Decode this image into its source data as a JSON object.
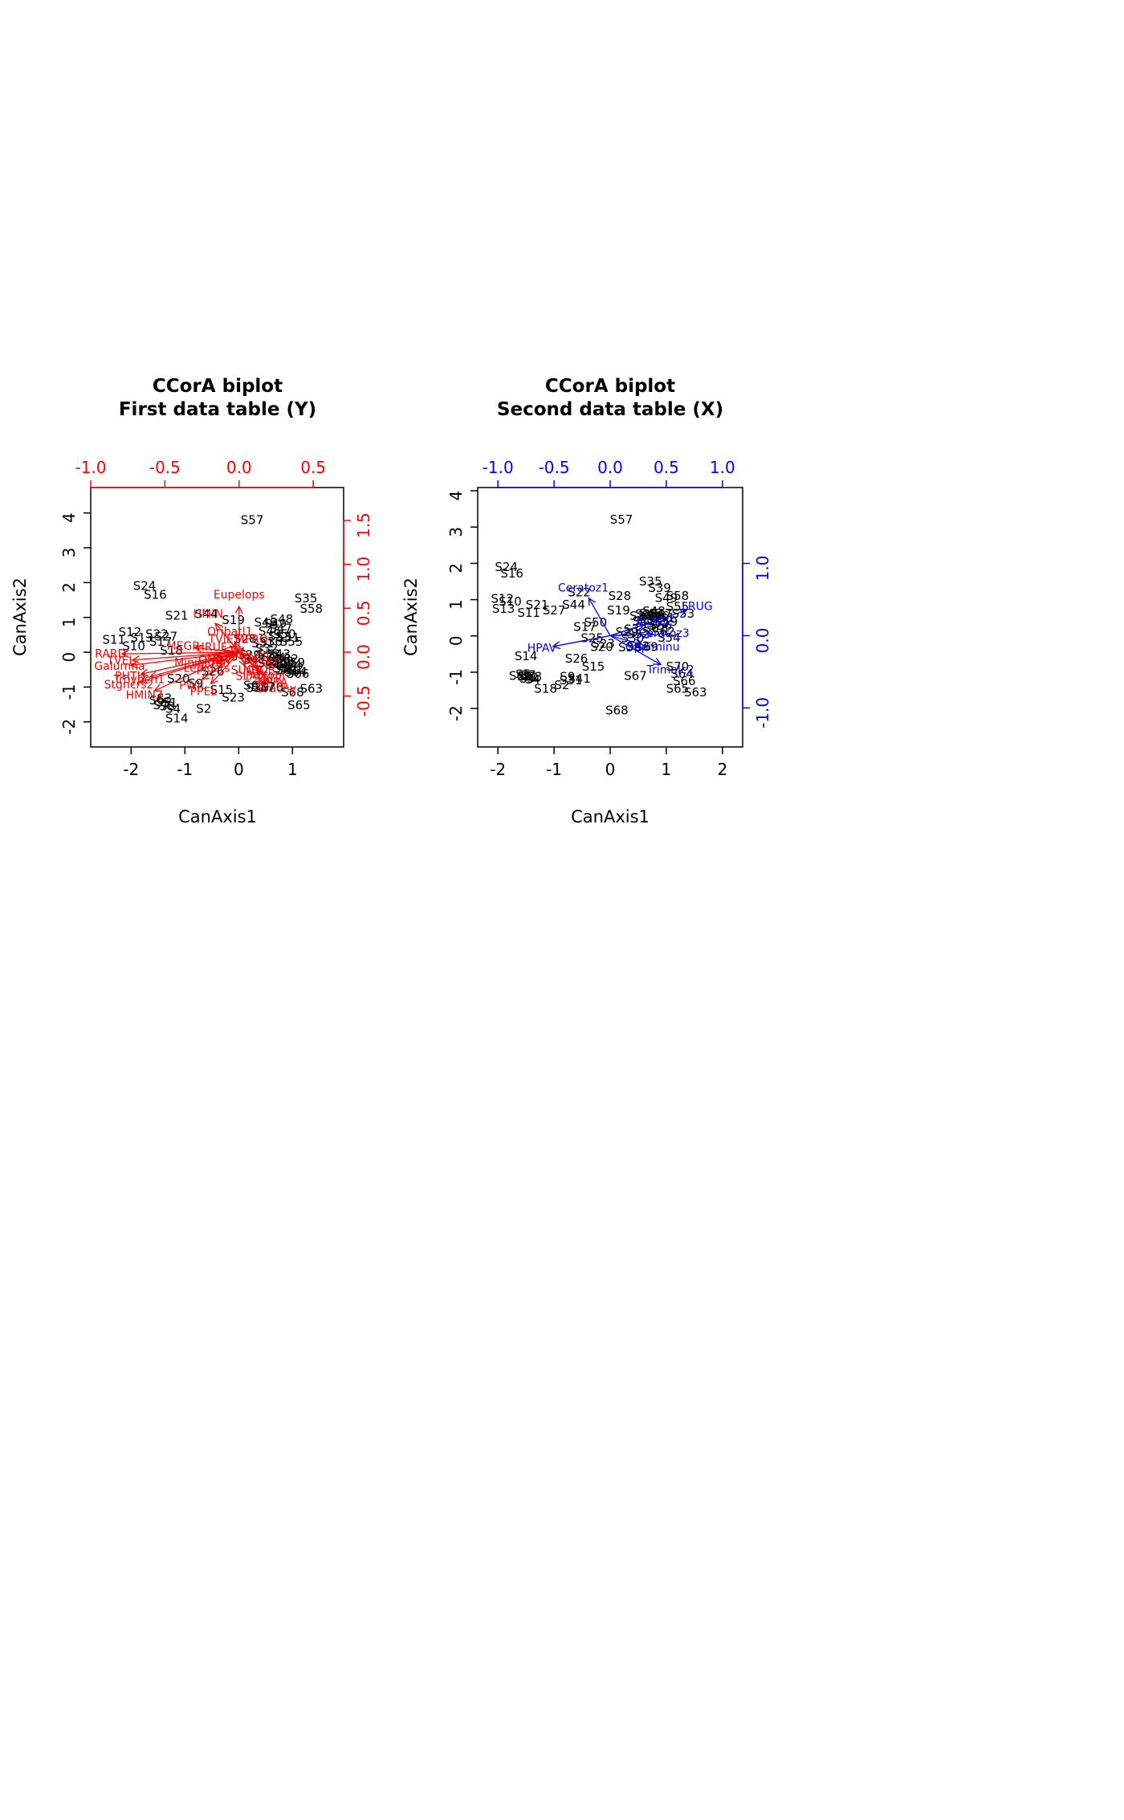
{
  "figure": {
    "background": "#ffffff",
    "site_label_color": "#000000",
    "box_color": "#000000"
  },
  "chart_data": [
    {
      "type": "scatter",
      "subtype": "CCorA-biplot",
      "title": [
        "CCorA biplot",
        "First data table (Y)"
      ],
      "xlabel": "CanAxis1",
      "ylabel": "CanAxis2",
      "site_color": "#000000",
      "arrow_color": "#ff0000",
      "axis_bottom": {
        "tick_labels": [
          "-2",
          "-1",
          "0",
          "1"
        ],
        "tick_values": [
          -2,
          -1,
          0,
          1
        ],
        "range": [
          -2.75,
          1.95
        ]
      },
      "axis_left": {
        "tick_labels": [
          "-2",
          "-1",
          "0",
          "1",
          "2",
          "3",
          "4"
        ],
        "tick_values": [
          -2,
          -1,
          0,
          1,
          2,
          3,
          4
        ],
        "range": [
          -2.72,
          4.73
        ]
      },
      "axis_top": {
        "tick_labels": [
          "-1.0",
          "-0.5",
          "0.0",
          "0.5"
        ],
        "tick_values": [
          -1.0,
          -0.5,
          0.0,
          0.5
        ],
        "range": [
          -1.0,
          0.705
        ]
      },
      "axis_right": {
        "tick_labels": [
          "-0.5",
          "0.0",
          "0.5",
          "1.0",
          "1.5"
        ],
        "tick_values": [
          -0.5,
          0.0,
          0.5,
          1.0,
          1.5
        ],
        "range": [
          -1.08,
          1.875
        ]
      },
      "sites": [
        [
          "S1",
          -1.28,
          -1.45
        ],
        [
          "S2",
          -0.65,
          -1.62
        ],
        [
          "S3",
          -1.38,
          -1.32
        ],
        [
          "S4",
          -1.22,
          -1.62
        ],
        [
          "S5",
          -1.4,
          -1.44
        ],
        [
          "S6",
          -1.52,
          -1.38
        ],
        [
          "S7",
          -1.45,
          -1.52
        ],
        [
          "S8",
          -1.33,
          -1.55
        ],
        [
          "S9",
          -0.8,
          -0.9
        ],
        [
          "S10",
          -1.95,
          0.18
        ],
        [
          "S11",
          -2.32,
          0.36
        ],
        [
          "S12",
          -2.02,
          0.58
        ],
        [
          "S13",
          -1.8,
          0.42
        ],
        [
          "S14",
          -1.15,
          -1.9
        ],
        [
          "S15",
          -0.32,
          -1.08
        ],
        [
          "S16",
          -1.55,
          1.65
        ],
        [
          "S17",
          -1.45,
          0.3
        ],
        [
          "S18",
          -1.25,
          0.05
        ],
        [
          "S19",
          -0.1,
          0.92
        ],
        [
          "S20",
          -1.12,
          -0.76
        ],
        [
          "S21",
          -1.15,
          1.05
        ],
        [
          "S22",
          -1.52,
          0.52
        ],
        [
          "S23",
          -0.1,
          -1.3
        ],
        [
          "S24",
          -1.75,
          1.9
        ],
        [
          "S25",
          -0.22,
          -0.12
        ],
        [
          "S26",
          -0.48,
          -0.55
        ],
        [
          "S27",
          -1.35,
          0.45
        ],
        [
          "S28",
          0.12,
          0.38
        ],
        [
          "S29",
          0.2,
          -0.08
        ],
        [
          "S30",
          0.35,
          -1.02
        ],
        [
          "S31",
          0.45,
          0.25
        ],
        [
          "S32",
          0.52,
          0.1
        ],
        [
          "S33",
          0.56,
          -0.06
        ],
        [
          "S34",
          0.66,
          -0.15
        ],
        [
          "S35",
          1.25,
          1.55
        ],
        [
          "S36",
          0.6,
          0.3
        ],
        [
          "S37",
          0.45,
          -1.0
        ],
        [
          "S38",
          0.76,
          -0.2
        ],
        [
          "S39",
          0.82,
          -0.26
        ],
        [
          "S40",
          0.7,
          -0.36
        ],
        [
          "S41",
          0.3,
          -0.22
        ],
        [
          "S42",
          0.56,
          -0.32
        ],
        [
          "S43",
          0.75,
          -0.06
        ],
        [
          "S44",
          -0.6,
          1.1
        ],
        [
          "S45",
          0.58,
          0.6
        ],
        [
          "S46",
          0.5,
          0.85
        ],
        [
          "S47",
          0.78,
          0.68
        ],
        [
          "S48",
          0.8,
          0.95
        ],
        [
          "S49",
          0.68,
          0.82
        ],
        [
          "S50",
          0.85,
          0.52
        ],
        [
          "S51",
          0.92,
          0.42
        ],
        [
          "S52",
          0.9,
          -0.2
        ],
        [
          "S53",
          0.76,
          0.45
        ],
        [
          "S54",
          0.96,
          -0.36
        ],
        [
          "S55",
          0.98,
          0.3
        ],
        [
          "S56",
          0.86,
          -0.46
        ],
        [
          "S57",
          0.25,
          3.8
        ],
        [
          "S58",
          1.35,
          1.25
        ],
        [
          "S59",
          1.02,
          -0.3
        ],
        [
          "S60",
          0.95,
          -0.52
        ],
        [
          "S61",
          0.9,
          -0.5
        ],
        [
          "S62",
          1.0,
          -0.46
        ],
        [
          "S63",
          1.35,
          -1.05
        ],
        [
          "S64",
          1.06,
          -0.56
        ],
        [
          "S65",
          1.12,
          -1.52
        ],
        [
          "S66",
          1.1,
          -0.62
        ],
        [
          "S67",
          0.3,
          -0.95
        ],
        [
          "S68",
          1.0,
          -1.15
        ],
        [
          "S69",
          0.76,
          -0.34
        ],
        [
          "S70",
          0.62,
          -1.0
        ]
      ],
      "arrows": [
        [
          "Eupelops",
          0.0,
          0.52
        ],
        [
          "HMIN",
          -0.16,
          0.33
        ],
        [
          "MEGR",
          -0.3,
          0.05
        ],
        [
          "RARD",
          -0.79,
          -0.02
        ],
        [
          "TVEL",
          -0.72,
          -0.09
        ],
        [
          "Galumna",
          -0.73,
          -0.15
        ],
        [
          "PHTH",
          -0.66,
          -0.25
        ],
        [
          "Trhypch1",
          -0.6,
          -0.28
        ],
        [
          "Stgncrs2",
          -0.67,
          -0.34
        ],
        [
          "HMIN2",
          -0.57,
          -0.44
        ],
        [
          "PPEL",
          -0.19,
          -0.36
        ],
        [
          "PWIL",
          -0.25,
          -0.31
        ],
        [
          "Brachy",
          0.2,
          -0.33
        ],
        [
          "NPRA",
          0.17,
          -0.26
        ],
        [
          "SSTR",
          0.14,
          -0.22
        ],
        [
          "MPRO",
          0.03,
          0.05
        ],
        [
          "TVIE",
          -0.06,
          0.07
        ],
        [
          "ONOV",
          -0.09,
          -0.05
        ],
        [
          "SUCT",
          0.02,
          -0.09
        ],
        [
          "LCIL",
          0.07,
          -0.03
        ],
        [
          "Oribatl1",
          -0.03,
          0.11
        ],
        [
          "HRUF",
          -0.11,
          0.03
        ],
        [
          "NCOR",
          0.08,
          -0.12
        ],
        [
          "SLAT",
          0.04,
          -0.16
        ],
        [
          "FSET",
          0.11,
          -0.08
        ],
        [
          "Lepidzts",
          -0.15,
          -0.13
        ],
        [
          "Miniglmn",
          -0.19,
          -0.09
        ],
        [
          "Protopl",
          0.12,
          -0.18
        ]
      ]
    },
    {
      "type": "scatter",
      "subtype": "CCorA-biplot",
      "title": [
        "CCorA biplot",
        "Second data table (X)"
      ],
      "xlabel": "CanAxis1",
      "ylabel": "CanAxis2",
      "site_color": "#000000",
      "arrow_color": "#0000ff",
      "axis_bottom": {
        "tick_labels": [
          "-2",
          "-1",
          "0",
          "1",
          "2"
        ],
        "tick_values": [
          -2,
          -1,
          0,
          1,
          2
        ],
        "range": [
          -2.36,
          2.36
        ]
      },
      "axis_left": {
        "tick_labels": [
          "-2",
          "-1",
          "0",
          "1",
          "2",
          "3",
          "4"
        ],
        "tick_values": [
          -2,
          -1,
          0,
          1,
          2,
          3,
          4
        ],
        "range": [
          -3.06,
          4.09
        ]
      },
      "axis_top": {
        "tick_labels": [
          "-1.0",
          "-0.5",
          "0.0",
          "0.5",
          "1.0"
        ],
        "tick_values": [
          -1.0,
          -0.5,
          0.0,
          0.5,
          1.0
        ],
        "range": [
          -1.18,
          1.18
        ]
      },
      "axis_right": {
        "tick_labels": [
          "-1.0",
          "0.0",
          "1.0"
        ],
        "tick_values": [
          -1.0,
          0.0,
          1.0
        ],
        "range": [
          -1.54,
          2.05
        ]
      },
      "sites": [
        [
          "S1",
          -1.42,
          -1.12
        ],
        [
          "S2",
          -0.86,
          -1.35
        ],
        [
          "S3",
          -1.48,
          -1.18
        ],
        [
          "S4",
          -1.38,
          -1.2
        ],
        [
          "S5",
          -1.55,
          -1.06
        ],
        [
          "S6",
          -1.52,
          -1.12
        ],
        [
          "S7",
          -1.46,
          -1.08
        ],
        [
          "S8",
          -1.35,
          -1.12
        ],
        [
          "S9",
          -0.76,
          -1.12
        ],
        [
          "S10",
          -1.78,
          0.95
        ],
        [
          "S11",
          -1.45,
          0.64
        ],
        [
          "S12",
          -1.92,
          1.02
        ],
        [
          "S13",
          -1.9,
          0.75
        ],
        [
          "S14",
          -1.5,
          -0.56
        ],
        [
          "S15",
          -0.3,
          -0.85
        ],
        [
          "S16",
          -1.75,
          1.72
        ],
        [
          "S17",
          -0.45,
          0.25
        ],
        [
          "S18",
          -1.15,
          -1.45
        ],
        [
          "S19",
          0.15,
          0.7
        ],
        [
          "S20",
          -0.15,
          -0.3
        ],
        [
          "S21",
          -1.3,
          0.86
        ],
        [
          "S22",
          -0.55,
          1.2
        ],
        [
          "S23",
          -0.12,
          -0.22
        ],
        [
          "S24",
          -1.85,
          1.9
        ],
        [
          "S25",
          -0.32,
          -0.06
        ],
        [
          "S26",
          -0.6,
          -0.62
        ],
        [
          "S27",
          -1.0,
          0.7
        ],
        [
          "S28",
          0.17,
          1.1
        ],
        [
          "S29",
          0.3,
          0.1
        ],
        [
          "S30",
          0.4,
          -0.06
        ],
        [
          "S31",
          -0.7,
          -1.22
        ],
        [
          "S32",
          0.5,
          0.05
        ],
        [
          "S33",
          0.45,
          0.18
        ],
        [
          "S34",
          0.55,
          0.55
        ],
        [
          "S35",
          0.72,
          1.5
        ],
        [
          "S36",
          0.65,
          0.6
        ],
        [
          "S37",
          0.7,
          0.45
        ],
        [
          "S38",
          0.35,
          -0.32
        ],
        [
          "S39",
          0.88,
          1.32
        ],
        [
          "S40",
          0.75,
          0.55
        ],
        [
          "S41",
          -0.55,
          -1.18
        ],
        [
          "S42",
          0.5,
          -0.28
        ],
        [
          "S43",
          0.6,
          0.4
        ],
        [
          "S44",
          -0.65,
          0.86
        ],
        [
          "S45",
          0.72,
          0.62
        ],
        [
          "S46",
          0.85,
          0.55
        ],
        [
          "S47",
          0.9,
          0.62
        ],
        [
          "S48",
          0.78,
          0.68
        ],
        [
          "S49",
          1.0,
          1.05
        ],
        [
          "S50",
          -0.26,
          0.37
        ],
        [
          "S51",
          0.95,
          0.5
        ],
        [
          "S52",
          0.85,
          0.35
        ],
        [
          "S53",
          1.3,
          0.62
        ],
        [
          "S54",
          1.05,
          -0.05
        ],
        [
          "S55",
          1.2,
          0.8
        ],
        [
          "S56",
          0.9,
          0.28
        ],
        [
          "S57",
          0.2,
          3.2
        ],
        [
          "S58",
          1.2,
          1.1
        ],
        [
          "S59",
          1.0,
          0.38
        ],
        [
          "S60",
          -1.6,
          -1.1
        ],
        [
          "S61",
          0.8,
          0.2
        ],
        [
          "S62",
          0.95,
          0.12
        ],
        [
          "S63",
          1.52,
          -1.55
        ],
        [
          "S64",
          1.28,
          -1.05
        ],
        [
          "S65",
          1.2,
          -1.45
        ],
        [
          "S66",
          1.32,
          -1.25
        ],
        [
          "S67",
          0.45,
          -1.1
        ],
        [
          "S68",
          0.12,
          -2.05
        ],
        [
          "S69",
          0.65,
          -0.3
        ],
        [
          "S70",
          1.2,
          -0.85
        ]
      ],
      "arrows": [
        [
          "Ceratoz1",
          -0.19,
          0.52
        ],
        [
          "LRUG",
          0.68,
          0.35
        ],
        [
          "HPAV",
          -0.51,
          -0.15
        ],
        [
          "PLAG2",
          0.3,
          0.15
        ],
        [
          "Ceratoz3",
          0.38,
          0.02
        ],
        [
          "Oppiminu",
          0.28,
          -0.12
        ],
        [
          "Trimalc2",
          0.45,
          -0.4
        ]
      ]
    }
  ]
}
